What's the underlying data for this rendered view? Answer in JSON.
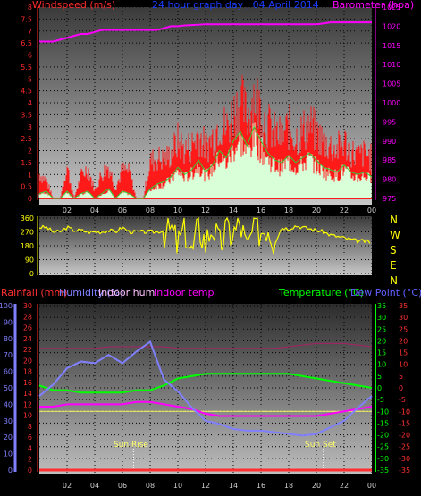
{
  "header": {
    "left_title": "Windspeed (m/s)",
    "center_title": "24 hour graph day , 04 April 2014",
    "right_title": "Barometer (hpa)"
  },
  "colors": {
    "wind_axis": "#ff2a2a",
    "baro": "#ff00ff",
    "center_title": "#1a3cff",
    "wind_gust": "#ff1a1a",
    "wind_avg": "#d8ffd8",
    "wind_avg_line": "#33cc33",
    "direction": "#ffff00",
    "compass": "#ffff00",
    "rain": "#ff3030",
    "humidity": "#8080ff",
    "indoor_hum": "#ffc0ff",
    "indoor_temp": "#ff00ff",
    "temperature": "#00ff00",
    "dew_point": "#6060ff",
    "temp_axis": "#00ff00",
    "dew_axis": "#ff3030",
    "sun_marker": "#ffff66",
    "axis_ticks_x": "#00aaff"
  },
  "legend_bottom": {
    "rainfall": "Rainfall (mm)",
    "humidity": "Humidity (%)",
    "indoor_hum": "Indoor hum",
    "indoor_temp": "Indoor temp",
    "temperature": "Temperature (°C)",
    "dew_point": "Dew Point (°C)"
  },
  "compass": [
    "N",
    "W",
    "S",
    "E",
    "N"
  ],
  "annotations": {
    "sun_rise": "Sun Rise",
    "sun_set": "Sun Set"
  },
  "chart_data": [
    {
      "type": "bar",
      "name": "wind",
      "x_ticks": [
        "02",
        "04",
        "06",
        "08",
        "10",
        "12",
        "14",
        "16",
        "18",
        "20",
        "22",
        "00"
      ],
      "y_left_ticks": [
        "0",
        "0.5",
        "1",
        "1.5",
        "2",
        "2.5",
        "3",
        "3.5",
        "4",
        "4.5",
        "5",
        "5.5",
        "6",
        "6.5",
        "7",
        "7.5",
        "8"
      ],
      "y_right_ticks": [
        "975",
        "980",
        "985",
        "990",
        "995",
        "1000",
        "1005",
        "1010",
        "1015",
        "1020",
        "1025"
      ],
      "ylim_left": [
        0,
        8
      ],
      "ylim_right": [
        975,
        1025
      ],
      "grid": true,
      "x_hours": [
        0,
        0.5,
        1,
        1.5,
        2,
        2.5,
        3,
        3.5,
        4,
        4.5,
        5,
        5.5,
        6,
        6.5,
        7,
        7.5,
        8,
        8.5,
        9,
        9.5,
        10,
        10.5,
        11,
        11.5,
        12,
        12.5,
        13,
        13.5,
        14,
        14.5,
        15,
        15.5,
        16,
        16.5,
        17,
        17.5,
        18,
        18.5,
        19,
        19.5,
        20,
        20.5,
        21,
        21.5,
        22,
        22.5,
        23,
        23.5,
        24
      ],
      "gust": [
        1.2,
        0.9,
        0,
        0,
        1.6,
        0,
        1.1,
        1.5,
        0.4,
        1.2,
        1.6,
        0.5,
        1.4,
        1.3,
        0,
        0,
        1.8,
        2.0,
        1.9,
        2.2,
        2.8,
        2.4,
        2.6,
        3.2,
        2.5,
        3.0,
        3.8,
        3.4,
        4.2,
        4.8,
        4.0,
        5.2,
        4.3,
        3.6,
        3.2,
        3.0,
        3.5,
        3.0,
        3.3,
        3.6,
        3.2,
        2.8,
        2.6,
        2.4,
        2.8,
        2.3,
        2.1,
        2.2,
        2.0
      ],
      "avg": [
        0.2,
        0.3,
        0,
        0,
        0.3,
        0,
        0.2,
        0.3,
        0,
        0.2,
        0.4,
        0,
        0.3,
        0.2,
        0,
        0,
        0.4,
        0.6,
        0.7,
        0.9,
        1.3,
        1.0,
        1.2,
        1.6,
        1.1,
        1.4,
        2.0,
        1.7,
        2.4,
        2.8,
        2.2,
        3.0,
        2.4,
        1.9,
        1.6,
        1.5,
        1.8,
        1.5,
        1.7,
        1.9,
        1.6,
        1.3,
        1.2,
        1.1,
        1.4,
        1.1,
        1.0,
        1.1,
        0.9
      ],
      "barometer_hpa": [
        1016,
        1016,
        1016,
        1016.5,
        1017,
        1017.5,
        1018,
        1018,
        1018.5,
        1019,
        1019,
        1019,
        1019,
        1019,
        1019,
        1019,
        1019,
        1019,
        1019.5,
        1020,
        1020,
        1020.2,
        1020.3,
        1020.4,
        1020.5,
        1020.5,
        1020.5,
        1020.5,
        1020.5,
        1020.5,
        1020.5,
        1020.5,
        1020.5,
        1020.5,
        1020.5,
        1020.5,
        1020.5,
        1020.5,
        1020.5,
        1020.5,
        1020.5,
        1020.7,
        1021,
        1021,
        1021,
        1021,
        1021,
        1021,
        1021
      ]
    },
    {
      "type": "line",
      "name": "direction",
      "x_ticks": [
        "02",
        "04",
        "06",
        "08",
        "10",
        "12",
        "14",
        "16",
        "18",
        "20",
        "22",
        "00"
      ],
      "y_ticks": [
        "360",
        "270",
        "180",
        "90",
        "0"
      ],
      "ylim": [
        0,
        360
      ],
      "x_hours": [
        0,
        0.5,
        1,
        1.5,
        2,
        2.5,
        3,
        3.5,
        4,
        4.5,
        5,
        5.5,
        6,
        6.5,
        7,
        7.5,
        8,
        8.5,
        9,
        9.5,
        10,
        10.5,
        11,
        11.5,
        12,
        12.5,
        13,
        13.5,
        14,
        14.5,
        15,
        15.5,
        16,
        16.5,
        17,
        17.5,
        18,
        18.5,
        19,
        19.5,
        20,
        20.5,
        21,
        21.5,
        22,
        22.5,
        23,
        23.5,
        24
      ],
      "degrees": [
        300,
        300,
        270,
        270,
        300,
        280,
        280,
        270,
        270,
        270,
        280,
        270,
        300,
        270,
        270,
        270,
        270,
        270,
        280,
        290,
        180,
        300,
        120,
        310,
        200,
        320,
        170,
        300,
        260,
        330,
        150,
        310,
        280,
        320,
        200,
        300,
        290,
        310,
        300,
        290,
        280,
        270,
        250,
        240,
        230,
        220,
        210,
        210,
        200
      ]
    },
    {
      "type": "line",
      "name": "temp_humidity",
      "x_ticks": [
        "02",
        "04",
        "06",
        "08",
        "10",
        "12",
        "14",
        "16",
        "18",
        "20",
        "22",
        "00"
      ],
      "y_humidity_ticks": [
        "0",
        "10",
        "20",
        "30",
        "40",
        "50",
        "60",
        "70",
        "80",
        "90",
        "100"
      ],
      "y_rain_ticks": [
        "0",
        "2",
        "4",
        "6",
        "8",
        "10",
        "12",
        "14",
        "16",
        "18",
        "20",
        "22",
        "24",
        "26",
        "28",
        "30"
      ],
      "y_temp_ticks": [
        "35",
        "30",
        "25",
        "20",
        "15",
        "10",
        "5",
        "0",
        "-5",
        "-10",
        "-15",
        "-20",
        "-25",
        "-30",
        "-35"
      ],
      "y_dew_ticks": [
        "35",
        "30",
        "25",
        "20",
        "15",
        "10",
        "5",
        "0",
        "-5",
        "-10",
        "-15",
        "-20",
        "-25",
        "-30",
        "-35"
      ],
      "ylim_humidity": [
        0,
        100
      ],
      "ylim_temp": [
        -35,
        35
      ],
      "x_hours": [
        0,
        1,
        2,
        3,
        4,
        5,
        6,
        7,
        8,
        9,
        10,
        11,
        12,
        13,
        14,
        15,
        16,
        17,
        18,
        19,
        20,
        21,
        22,
        23,
        24
      ],
      "humidity": [
        45,
        52,
        62,
        66,
        65,
        70,
        65,
        72,
        78,
        55,
        48,
        38,
        30,
        28,
        25,
        24,
        24,
        23,
        22,
        21,
        22,
        26,
        30,
        38,
        45
      ],
      "temperature": [
        1,
        -1,
        -1,
        -2,
        -2,
        -2,
        -2,
        -1,
        -1,
        1,
        4,
        5,
        6,
        6,
        6,
        6,
        6,
        6,
        6,
        5,
        4,
        3,
        2,
        1,
        0
      ],
      "indoor_temp": [
        -8,
        -8,
        -7,
        -7,
        -7,
        -7,
        -7,
        -6,
        -6,
        -7,
        -8,
        -9,
        -11,
        -12,
        -12,
        -12,
        -12,
        -12,
        -12,
        -12,
        -12,
        -11,
        -10,
        -9,
        -8
      ],
      "indoor_hum": [
        74,
        74,
        74,
        74,
        74,
        75,
        75,
        75,
        75,
        75,
        74,
        74,
        74,
        74,
        74,
        74,
        74,
        74,
        75,
        76,
        77,
        77,
        77,
        76,
        75
      ],
      "dew_point": [
        -10,
        -10,
        -10,
        -10,
        -10,
        -10,
        -10,
        -10,
        -10,
        -10,
        -10,
        -10,
        -10,
        -10,
        -10,
        -10,
        -10,
        -10,
        -10,
        -10,
        -10,
        -10,
        -10,
        -10,
        -10
      ],
      "rainfall": [
        0,
        0,
        0,
        0,
        0,
        0,
        0,
        0,
        0,
        0,
        0,
        0,
        0,
        0,
        0,
        0,
        0,
        0,
        0,
        0,
        0,
        0,
        0,
        0,
        0
      ],
      "sun_rise_hour": 6.8,
      "sun_set_hour": 20.5
    }
  ]
}
